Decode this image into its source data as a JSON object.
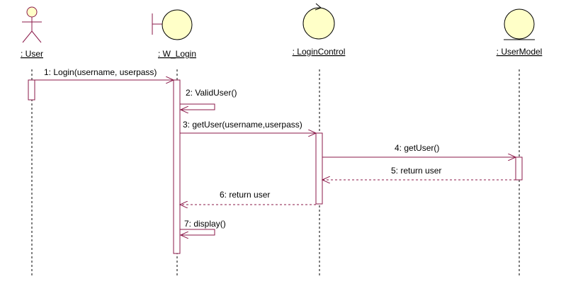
{
  "diagram": {
    "type": "uml-sequence-diagram",
    "colors": {
      "line": "#8b1a4a",
      "object_fill": "#ffffc8",
      "object_stroke": "#000000",
      "background": "#ffffff",
      "text": "#000000"
    },
    "participants": [
      {
        "label": ": User",
        "kind": "actor"
      },
      {
        "label": ": W_Login",
        "kind": "boundary"
      },
      {
        "label": ": LoginControl",
        "kind": "control"
      },
      {
        "label": ": UserModel",
        "kind": "entity"
      }
    ],
    "messages": [
      {
        "label": "1: Login(username, userpass)",
        "from": 0,
        "to": 1,
        "type": "call"
      },
      {
        "label": "2: ValidUser()",
        "from": 1,
        "to": 1,
        "type": "self"
      },
      {
        "label": "3: getUser(username,userpass)",
        "from": 1,
        "to": 2,
        "type": "call"
      },
      {
        "label": "4: getUser()",
        "from": 2,
        "to": 3,
        "type": "call"
      },
      {
        "label": "5: return user",
        "from": 3,
        "to": 2,
        "type": "return"
      },
      {
        "label": "6: return user",
        "from": 2,
        "to": 1,
        "type": "return"
      },
      {
        "label": "7: display()",
        "from": 1,
        "to": 1,
        "type": "self"
      }
    ]
  }
}
